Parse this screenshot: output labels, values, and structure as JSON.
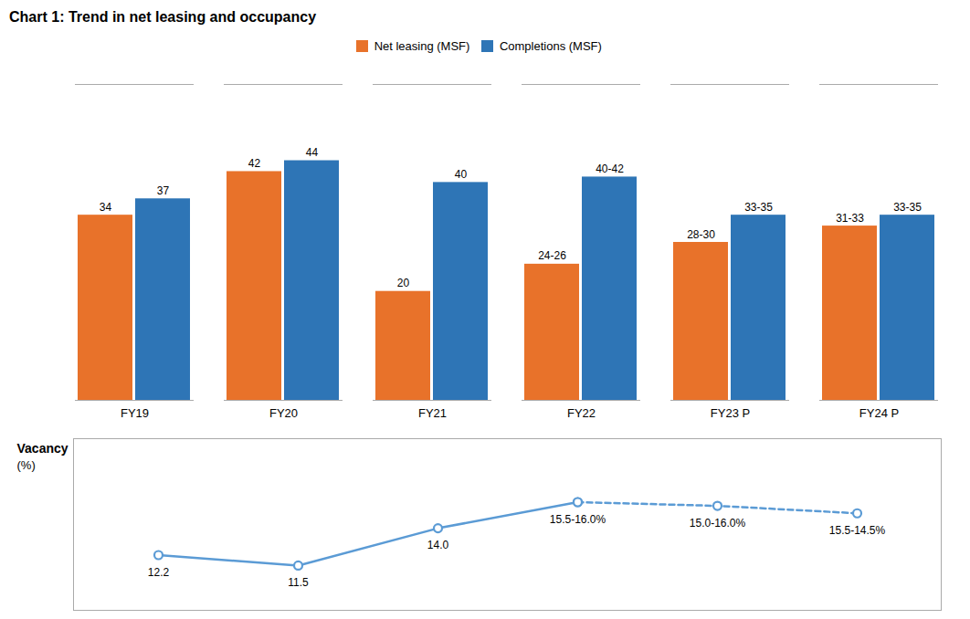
{
  "chart_data": [
    {
      "type": "bar",
      "title": "Chart 1: Trend in net leasing and occupancy",
      "categories": [
        "FY19",
        "FY20",
        "FY21",
        "FY22",
        "FY23 P",
        "FY24 P"
      ],
      "series": [
        {
          "name": "Net leasing (MSF)",
          "color": "#E8722A",
          "values": [
            34,
            42,
            20,
            25,
            29,
            32
          ],
          "value_labels": [
            "34",
            "42",
            "20",
            "24-26",
            "28-30",
            "31-33"
          ]
        },
        {
          "name": "Completions (MSF)",
          "color": "#2E75B6",
          "values": [
            37,
            44,
            40,
            41,
            34,
            34
          ],
          "value_labels": [
            "37",
            "44",
            "40",
            "40-42",
            "33-35",
            "33-35"
          ]
        }
      ],
      "ylim": [
        0,
        58
      ],
      "legend": "top",
      "data_labels": true,
      "tick_labels": "x",
      "grid": false
    },
    {
      "type": "line",
      "categories": [
        "FY19",
        "FY20",
        "FY21",
        "FY22",
        "FY23 P",
        "FY24 P"
      ],
      "annotations": [
        "Vacancy",
        "(%)"
      ],
      "series": [
        {
          "color": "#5B9BD5",
          "line_style": "solid",
          "marker": "circle",
          "values": [
            12.2,
            11.5,
            14.0,
            15.75,
            null,
            null
          ],
          "value_labels": [
            "12.2",
            "11.5",
            "14.0",
            "15.5-16.0%",
            null,
            null
          ]
        },
        {
          "color": "#5B9BD5",
          "line_style": "dashed",
          "marker": "circle",
          "values": [
            null,
            null,
            null,
            15.75,
            15.5,
            15.0
          ],
          "value_labels": [
            null,
            null,
            null,
            null,
            "15.0-16.0%",
            "15.5-14.5%"
          ]
        }
      ],
      "ylim": [
        8.5,
        20
      ],
      "data_labels": true,
      "tick_labels": false,
      "grid": false
    }
  ]
}
